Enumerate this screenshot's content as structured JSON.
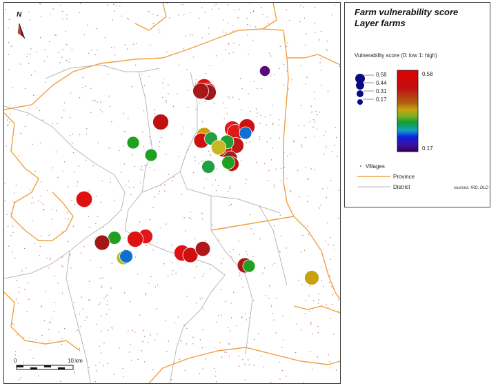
{
  "legend": {
    "title1": "Farm vulnerability score",
    "title2": "Layer farms",
    "score_label": "Vulnerability score (0: low 1: high)",
    "size_values": [
      "0.58",
      "0.44",
      "0.31",
      "0.17"
    ],
    "ramp_max": "0.58",
    "ramp_min": "0.17",
    "villages": "Villages",
    "province": "Province",
    "district": "District",
    "sources": "sources: IRD, DLD"
  },
  "map": {
    "north": "N",
    "scale_zero": "0",
    "scale_end": "10 km"
  },
  "colors": {
    "province": "#f0a040",
    "district": "#b8b8b8",
    "village": "#c07060",
    "score_size_symbol": "#0a0a80"
  },
  "farms": [
    {
      "score": 0.58,
      "color": "#e01010"
    },
    {
      "score": 0.56,
      "color": "#c01010"
    },
    {
      "score": 0.55,
      "color": "#a01818"
    },
    {
      "score": 0.55,
      "color": "#a81818"
    },
    {
      "score": 0.17,
      "color": "#5a0a7a"
    },
    {
      "score": 0.55,
      "color": "#c01010"
    },
    {
      "score": 0.3,
      "color": "#20a020"
    },
    {
      "score": 0.3,
      "color": "#20a020"
    },
    {
      "score": 0.5,
      "color": "#c8a010"
    },
    {
      "score": 0.5,
      "color": "#d01010"
    },
    {
      "score": 0.55,
      "color": "#e01818"
    },
    {
      "score": 0.55,
      "color": "#e01818"
    },
    {
      "score": 0.56,
      "color": "#d01010"
    },
    {
      "score": 0.55,
      "color": "#c01818"
    },
    {
      "score": 0.5,
      "color": "#c01010"
    },
    {
      "score": 0.35,
      "color": "#20a040"
    },
    {
      "score": 0.4,
      "color": "#20a030"
    },
    {
      "score": 0.48,
      "color": "#c8b820"
    },
    {
      "score": 0.4,
      "color": "#a02020"
    },
    {
      "score": 0.45,
      "color": "#c01010"
    },
    {
      "score": 0.35,
      "color": "#20a020"
    },
    {
      "score": 0.3,
      "color": "#1070d0"
    },
    {
      "score": 0.35,
      "color": "#20a040"
    },
    {
      "score": 0.45,
      "color": "#e01818"
    },
    {
      "score": 0.35,
      "color": "#20a020"
    },
    {
      "score": 0.58,
      "color": "#e01010"
    },
    {
      "score": 0.5,
      "color": "#a01818"
    },
    {
      "score": 0.56,
      "color": "#e01010"
    },
    {
      "score": 0.56,
      "color": "#e01010"
    },
    {
      "score": 0.4,
      "color": "#b8b820"
    },
    {
      "score": 0.35,
      "color": "#1070d0"
    },
    {
      "score": 0.5,
      "color": "#b01818"
    },
    {
      "score": 0.5,
      "color": "#d01010"
    },
    {
      "score": 0.48,
      "color": "#b01818"
    },
    {
      "score": 0.3,
      "color": "#20a020"
    },
    {
      "score": 0.45,
      "color": "#c8a010"
    }
  ]
}
